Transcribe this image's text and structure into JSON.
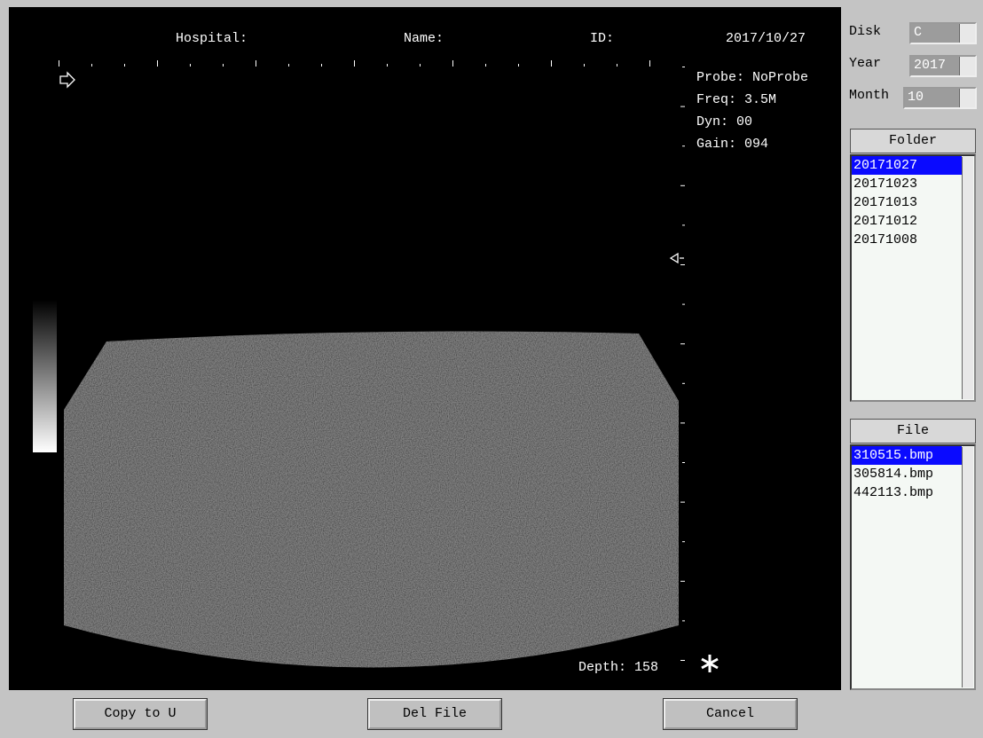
{
  "header": {
    "hospital": "Hospital:",
    "name": "Name:",
    "id": "ID:",
    "date": "2017/10/27"
  },
  "params": {
    "probe": "Probe: NoProbe",
    "freq": "Freq: 3.5M",
    "dyn": "Dyn: 00",
    "gain": "Gain: 094",
    "depth": "Depth: 158"
  },
  "sidebar": {
    "disk": {
      "label": "Disk",
      "value": "C"
    },
    "year": {
      "label": "Year",
      "value": "2017"
    },
    "month": {
      "label": "Month",
      "value": "10"
    },
    "folder": {
      "title": "Folder",
      "items": [
        "20171027",
        "20171023",
        "20171013",
        "20171012",
        "20171008"
      ],
      "selected": 0
    },
    "file": {
      "title": "File",
      "items": [
        "310515.bmp",
        "305814.bmp",
        "442113.bmp"
      ],
      "selected": 0
    }
  },
  "buttons": [
    "Copy to U",
    "Del File",
    "Cancel"
  ]
}
